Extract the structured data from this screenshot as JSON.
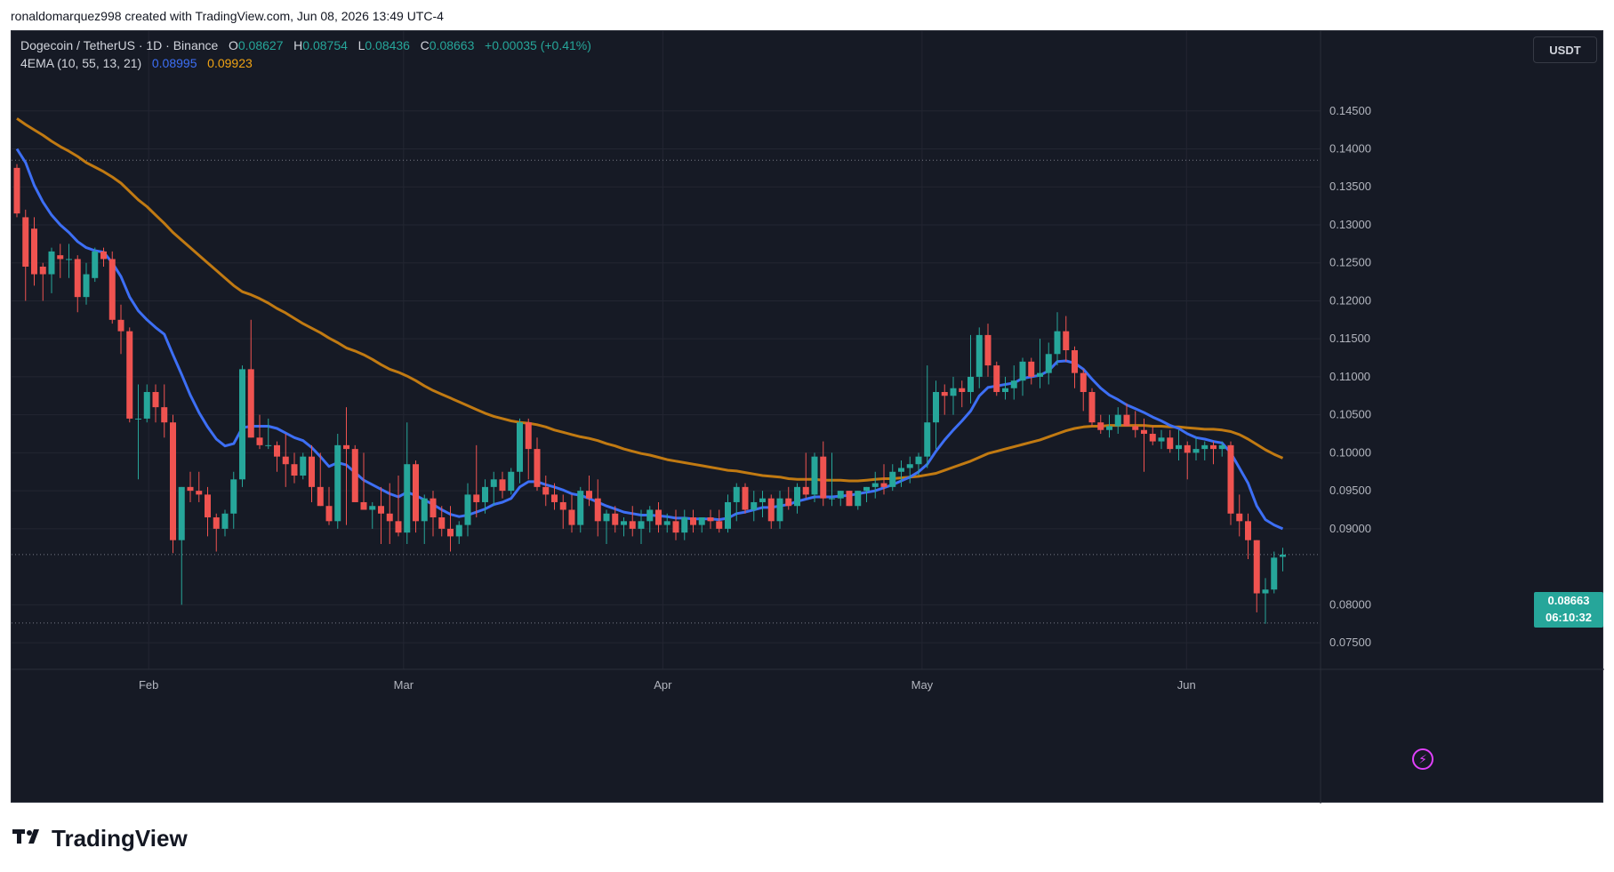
{
  "header": {
    "credit": "ronaldomarquez998 created with TradingView.com, Jun 08, 2026 13:49 UTC-4"
  },
  "legend": {
    "symbol": "Dogecoin / TetherUS · 1D · Binance",
    "o_label": "O",
    "o_value": "0.08627",
    "h_label": "H",
    "h_value": "0.08754",
    "l_label": "L",
    "l_value": "0.08436",
    "c_label": "C",
    "c_value": "0.08663",
    "change": "+0.00035 (+0.41%)",
    "indicator": "4EMA (10, 55, 13, 21)",
    "ema_fast": "0.08995",
    "ema_slow": "0.09923"
  },
  "currency_button": "USDT",
  "price_tag": {
    "price": "0.08663",
    "countdown": "06:10:32"
  },
  "footer": {
    "brand": "TradingView"
  },
  "colors": {
    "up": "#26a69a",
    "down": "#ef5350",
    "ema_fast": "#3d6ff5",
    "ema_slow": "#c17a12",
    "background": "#161a25"
  },
  "chart_data": {
    "type": "candlestick",
    "y_ticks": [
      "0.14500",
      "0.14000",
      "0.13500",
      "0.13000",
      "0.12500",
      "0.12000",
      "0.11500",
      "0.11000",
      "0.10500",
      "0.10000",
      "0.09500",
      "0.09000",
      "0.08000",
      "0.07500"
    ],
    "y_range": [
      0.0715,
      0.1555
    ],
    "x_labels": [
      "Feb",
      "Mar",
      "Apr",
      "May",
      "Jun"
    ],
    "candles": [
      [
        0.1375,
        0.138,
        0.131,
        0.1315
      ],
      [
        0.131,
        0.132,
        0.12,
        0.1245
      ],
      [
        0.1295,
        0.131,
        0.122,
        0.1235
      ],
      [
        0.1245,
        0.125,
        0.12,
        0.1235
      ],
      [
        0.1235,
        0.127,
        0.121,
        0.1265
      ],
      [
        0.126,
        0.1275,
        0.123,
        0.1255
      ],
      [
        0.1255,
        0.1275,
        0.123,
        0.1255
      ],
      [
        0.1255,
        0.126,
        0.1185,
        0.1205
      ],
      [
        0.1205,
        0.125,
        0.1195,
        0.1235
      ],
      [
        0.123,
        0.127,
        0.1225,
        0.1265
      ],
      [
        0.1265,
        0.127,
        0.1245,
        0.1255
      ],
      [
        0.1255,
        0.1265,
        0.117,
        0.1175
      ],
      [
        0.1175,
        0.1195,
        0.113,
        0.116
      ],
      [
        0.116,
        0.1165,
        0.104,
        0.1045
      ],
      [
        0.1045,
        0.109,
        0.0965,
        0.1045
      ],
      [
        0.1045,
        0.109,
        0.104,
        0.108
      ],
      [
        0.108,
        0.109,
        0.104,
        0.106
      ],
      [
        0.106,
        0.109,
        0.102,
        0.104
      ],
      [
        0.104,
        0.105,
        0.0868,
        0.0885
      ],
      [
        0.0885,
        0.0955,
        0.08,
        0.0955
      ],
      [
        0.0955,
        0.0975,
        0.0935,
        0.095
      ],
      [
        0.095,
        0.0975,
        0.0935,
        0.0945
      ],
      [
        0.0945,
        0.0955,
        0.089,
        0.0915
      ],
      [
        0.0915,
        0.092,
        0.087,
        0.09
      ],
      [
        0.09,
        0.0925,
        0.089,
        0.092
      ],
      [
        0.092,
        0.0975,
        0.09,
        0.0965
      ],
      [
        0.0965,
        0.1115,
        0.0955,
        0.111
      ],
      [
        0.111,
        0.1175,
        0.102,
        0.102
      ],
      [
        0.102,
        0.105,
        0.1005,
        0.101
      ],
      [
        0.101,
        0.1045,
        0.1005,
        0.101
      ],
      [
        0.101,
        0.1015,
        0.0975,
        0.0995
      ],
      [
        0.0995,
        0.1025,
        0.0955,
        0.0985
      ],
      [
        0.0985,
        0.1,
        0.096,
        0.097
      ],
      [
        0.097,
        0.1,
        0.0965,
        0.0995
      ],
      [
        0.0995,
        0.101,
        0.0935,
        0.0955
      ],
      [
        0.0955,
        0.1,
        0.093,
        0.093
      ],
      [
        0.093,
        0.0955,
        0.0905,
        0.091
      ],
      [
        0.091,
        0.1025,
        0.09,
        0.101
      ],
      [
        0.101,
        0.106,
        0.0905,
        0.1005
      ],
      [
        0.1005,
        0.101,
        0.0935,
        0.0935
      ],
      [
        0.0935,
        0.1,
        0.0925,
        0.0925
      ],
      [
        0.0925,
        0.0935,
        0.09,
        0.093
      ],
      [
        0.093,
        0.0955,
        0.088,
        0.092
      ],
      [
        0.092,
        0.096,
        0.088,
        0.091
      ],
      [
        0.091,
        0.097,
        0.089,
        0.0895
      ],
      [
        0.0895,
        0.104,
        0.088,
        0.0985
      ],
      [
        0.0985,
        0.099,
        0.0895,
        0.091
      ],
      [
        0.091,
        0.0945,
        0.088,
        0.094
      ],
      [
        0.094,
        0.095,
        0.089,
        0.0915
      ],
      [
        0.0915,
        0.093,
        0.089,
        0.09
      ],
      [
        0.09,
        0.093,
        0.087,
        0.089
      ],
      [
        0.089,
        0.091,
        0.088,
        0.0905
      ],
      [
        0.0905,
        0.096,
        0.089,
        0.0945
      ],
      [
        0.0945,
        0.101,
        0.0915,
        0.0935
      ],
      [
        0.0935,
        0.0965,
        0.092,
        0.0955
      ],
      [
        0.0955,
        0.0975,
        0.093,
        0.0965
      ],
      [
        0.0965,
        0.0975,
        0.094,
        0.095
      ],
      [
        0.095,
        0.098,
        0.0945,
        0.0975
      ],
      [
        0.0975,
        0.1045,
        0.096,
        0.104
      ],
      [
        0.104,
        0.1045,
        0.0965,
        0.1005
      ],
      [
        0.1005,
        0.102,
        0.095,
        0.0955
      ],
      [
        0.0955,
        0.097,
        0.093,
        0.0945
      ],
      [
        0.0945,
        0.096,
        0.0925,
        0.0935
      ],
      [
        0.0935,
        0.0945,
        0.09,
        0.0925
      ],
      [
        0.0925,
        0.0945,
        0.0895,
        0.0905
      ],
      [
        0.0905,
        0.0955,
        0.0895,
        0.095
      ],
      [
        0.095,
        0.097,
        0.093,
        0.094
      ],
      [
        0.094,
        0.0965,
        0.089,
        0.091
      ],
      [
        0.091,
        0.0925,
        0.088,
        0.092
      ],
      [
        0.092,
        0.093,
        0.0895,
        0.0905
      ],
      [
        0.0905,
        0.0915,
        0.089,
        0.091
      ],
      [
        0.091,
        0.093,
        0.089,
        0.09
      ],
      [
        0.09,
        0.0925,
        0.088,
        0.091
      ],
      [
        0.091,
        0.093,
        0.0895,
        0.0925
      ],
      [
        0.0925,
        0.0935,
        0.0895,
        0.0905
      ],
      [
        0.0905,
        0.092,
        0.0895,
        0.091
      ],
      [
        0.091,
        0.0925,
        0.0885,
        0.0895
      ],
      [
        0.0895,
        0.0925,
        0.0885,
        0.0915
      ],
      [
        0.0915,
        0.0925,
        0.0895,
        0.0905
      ],
      [
        0.0905,
        0.0915,
        0.0895,
        0.0915
      ],
      [
        0.0915,
        0.0925,
        0.09,
        0.091
      ],
      [
        0.091,
        0.0925,
        0.0895,
        0.09
      ],
      [
        0.09,
        0.0945,
        0.0895,
        0.0935
      ],
      [
        0.0935,
        0.096,
        0.091,
        0.0955
      ],
      [
        0.0955,
        0.096,
        0.092,
        0.0925
      ],
      [
        0.0925,
        0.095,
        0.091,
        0.0935
      ],
      [
        0.0935,
        0.095,
        0.0915,
        0.094
      ],
      [
        0.094,
        0.0945,
        0.09,
        0.091
      ],
      [
        0.091,
        0.095,
        0.09,
        0.094
      ],
      [
        0.094,
        0.0955,
        0.0925,
        0.093
      ],
      [
        0.093,
        0.096,
        0.092,
        0.0955
      ],
      [
        0.0955,
        0.1,
        0.094,
        0.0945
      ],
      [
        0.0945,
        0.1,
        0.0935,
        0.0995
      ],
      [
        0.0995,
        0.1015,
        0.093,
        0.094
      ],
      [
        0.094,
        0.1,
        0.093,
        0.094
      ],
      [
        0.094,
        0.095,
        0.093,
        0.095
      ],
      [
        0.095,
        0.095,
        0.093,
        0.093
      ],
      [
        0.093,
        0.095,
        0.0925,
        0.095
      ],
      [
        0.095,
        0.0955,
        0.0935,
        0.0955
      ],
      [
        0.0955,
        0.0975,
        0.094,
        0.096
      ],
      [
        0.096,
        0.0985,
        0.0945,
        0.0955
      ],
      [
        0.0955,
        0.0985,
        0.095,
        0.0975
      ],
      [
        0.0975,
        0.099,
        0.0955,
        0.098
      ],
      [
        0.098,
        0.0995,
        0.096,
        0.0985
      ],
      [
        0.0985,
        0.1,
        0.097,
        0.0995
      ],
      [
        0.0995,
        0.1115,
        0.098,
        0.104
      ],
      [
        0.104,
        0.1095,
        0.1005,
        0.108
      ],
      [
        0.108,
        0.109,
        0.105,
        0.1075
      ],
      [
        0.1075,
        0.11,
        0.105,
        0.1085
      ],
      [
        0.1085,
        0.1095,
        0.106,
        0.108
      ],
      [
        0.108,
        0.1155,
        0.1065,
        0.11
      ],
      [
        0.11,
        0.1165,
        0.1085,
        0.1155
      ],
      [
        0.1155,
        0.117,
        0.11,
        0.1115
      ],
      [
        0.1115,
        0.112,
        0.1075,
        0.108
      ],
      [
        0.108,
        0.11,
        0.107,
        0.1085
      ],
      [
        0.1085,
        0.1115,
        0.107,
        0.1095
      ],
      [
        0.1095,
        0.1125,
        0.1075,
        0.112
      ],
      [
        0.112,
        0.1125,
        0.109,
        0.11
      ],
      [
        0.11,
        0.115,
        0.1085,
        0.1105
      ],
      [
        0.1105,
        0.1145,
        0.109,
        0.113
      ],
      [
        0.113,
        0.1185,
        0.1115,
        0.116
      ],
      [
        0.116,
        0.118,
        0.112,
        0.1135
      ],
      [
        0.1135,
        0.114,
        0.1085,
        0.1105
      ],
      [
        0.1105,
        0.111,
        0.1055,
        0.108
      ],
      [
        0.108,
        0.1085,
        0.1035,
        0.104
      ],
      [
        0.104,
        0.105,
        0.1025,
        0.103
      ],
      [
        0.103,
        0.105,
        0.102,
        0.1035
      ],
      [
        0.1035,
        0.106,
        0.1025,
        0.105
      ],
      [
        0.105,
        0.1065,
        0.1035,
        0.1035
      ],
      [
        0.1035,
        0.1055,
        0.102,
        0.103
      ],
      [
        0.103,
        0.1045,
        0.0975,
        0.1025
      ],
      [
        0.1025,
        0.1035,
        0.101,
        0.1015
      ],
      [
        0.1015,
        0.103,
        0.1005,
        0.102
      ],
      [
        0.102,
        0.103,
        0.1,
        0.1005
      ],
      [
        0.1005,
        0.103,
        0.099,
        0.101
      ],
      [
        0.101,
        0.1015,
        0.0965,
        0.1
      ],
      [
        0.1,
        0.102,
        0.099,
        0.1005
      ],
      [
        0.1005,
        0.1015,
        0.099,
        0.101
      ],
      [
        0.101,
        0.1015,
        0.0985,
        0.1005
      ],
      [
        0.1005,
        0.1015,
        0.0995,
        0.101
      ],
      [
        0.101,
        0.1015,
        0.0905,
        0.092
      ],
      [
        0.092,
        0.0945,
        0.089,
        0.091
      ],
      [
        0.091,
        0.092,
        0.086,
        0.0885
      ],
      [
        0.0885,
        0.0885,
        0.079,
        0.0815
      ],
      [
        0.0815,
        0.0835,
        0.0775,
        0.082
      ],
      [
        0.082,
        0.087,
        0.0815,
        0.0862
      ],
      [
        0.0863,
        0.0875,
        0.0844,
        0.0866
      ]
    ],
    "ema_fast_series": [
      0.14,
      0.1382,
      0.1352,
      0.133,
      0.1313,
      0.13,
      0.129,
      0.1278,
      0.127,
      0.1266,
      0.1264,
      0.125,
      0.1232,
      0.1205,
      0.1187,
      0.1175,
      0.1165,
      0.1156,
      0.1129,
      0.1103,
      0.1076,
      0.1053,
      0.1034,
      0.1018,
      0.1009,
      0.1012,
      0.1033,
      0.1035,
      0.1035,
      0.1035,
      0.1032,
      0.1026,
      0.102,
      0.1016,
      0.1007,
      0.0995,
      0.0982,
      0.0987,
      0.0984,
      0.0974,
      0.0964,
      0.0958,
      0.0952,
      0.0946,
      0.0942,
      0.0948,
      0.0944,
      0.0938,
      0.0932,
      0.0925,
      0.0919,
      0.0916,
      0.0918,
      0.0922,
      0.0926,
      0.0932,
      0.0935,
      0.094,
      0.0955,
      0.0962,
      0.0962,
      0.0958,
      0.0955,
      0.0951,
      0.0946,
      0.0944,
      0.094,
      0.0935,
      0.093,
      0.0926,
      0.0922,
      0.092,
      0.0918,
      0.0918,
      0.0917,
      0.0916,
      0.0914,
      0.0914,
      0.0913,
      0.0913,
      0.0913,
      0.0912,
      0.0914,
      0.092,
      0.0922,
      0.0925,
      0.0928,
      0.0928,
      0.093,
      0.0932,
      0.0936,
      0.0939,
      0.0942,
      0.0942,
      0.0942,
      0.0943,
      0.0944,
      0.0946,
      0.0948,
      0.095,
      0.0954,
      0.0958,
      0.0963,
      0.0968,
      0.0975,
      0.0985,
      0.1002,
      0.1017,
      0.103,
      0.1042,
      0.1055,
      0.1075,
      0.1086,
      0.1088,
      0.109,
      0.1092,
      0.1098,
      0.11,
      0.1102,
      0.1108,
      0.112,
      0.1121,
      0.1118,
      0.111,
      0.1097,
      0.1085,
      0.1076,
      0.107,
      0.1063,
      0.1058,
      0.1053,
      0.1047,
      0.1042,
      0.1036,
      0.1032,
      0.1025,
      0.102,
      0.1018,
      0.1015,
      0.1013,
      0.1,
      0.098,
      0.096,
      0.093,
      0.0912,
      0.0905,
      0.09
    ],
    "ema_slow_series": [
      0.144,
      0.1432,
      0.1425,
      0.1418,
      0.141,
      0.1403,
      0.1397,
      0.139,
      0.1382,
      0.1376,
      0.137,
      0.1363,
      0.1355,
      0.1344,
      0.1333,
      0.1324,
      0.1313,
      0.1302,
      0.129,
      0.128,
      0.127,
      0.126,
      0.125,
      0.124,
      0.123,
      0.122,
      0.1212,
      0.1208,
      0.1203,
      0.1197,
      0.119,
      0.1184,
      0.1177,
      0.117,
      0.1164,
      0.1158,
      0.1151,
      0.1145,
      0.1138,
      0.1134,
      0.1129,
      0.1123,
      0.1116,
      0.111,
      0.1106,
      0.1101,
      0.1095,
      0.1088,
      0.1082,
      0.1077,
      0.1072,
      0.1067,
      0.1062,
      0.1057,
      0.1052,
      0.1048,
      0.1045,
      0.1042,
      0.104,
      0.1039,
      0.1037,
      0.1034,
      0.103,
      0.1027,
      0.1024,
      0.1021,
      0.1019,
      0.1016,
      0.1012,
      0.1009,
      0.1005,
      0.1002,
      0.0999,
      0.0997,
      0.0994,
      0.0991,
      0.0989,
      0.0987,
      0.0985,
      0.0983,
      0.0981,
      0.0979,
      0.0977,
      0.0976,
      0.0974,
      0.0972,
      0.097,
      0.0969,
      0.0968,
      0.0966,
      0.0965,
      0.0965,
      0.0965,
      0.0964,
      0.0964,
      0.0964,
      0.0963,
      0.0963,
      0.0964,
      0.0965,
      0.0966,
      0.0966,
      0.0967,
      0.0968,
      0.0969,
      0.0971,
      0.0973,
      0.0977,
      0.0981,
      0.0985,
      0.0989,
      0.0994,
      0.0999,
      0.1002,
      0.1005,
      0.1008,
      0.1011,
      0.1014,
      0.1017,
      0.1021,
      0.1025,
      0.1029,
      0.1032,
      0.1034,
      0.1035,
      0.1035,
      0.1036,
      0.1036,
      0.1036,
      0.1036,
      0.1036,
      0.1035,
      0.1035,
      0.1034,
      0.1034,
      0.1033,
      0.1032,
      0.1031,
      0.1031,
      0.103,
      0.1028,
      0.1024,
      0.1018,
      0.1011,
      0.1004,
      0.0998,
      0.0993
    ],
    "reference_lines": [
      0.1385,
      0.0866,
      0.0776
    ]
  }
}
